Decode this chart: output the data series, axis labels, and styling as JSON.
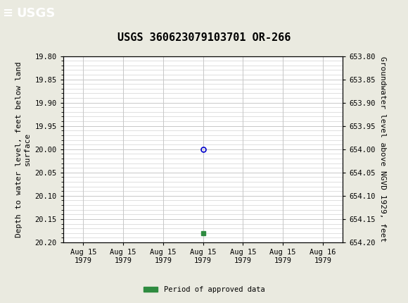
{
  "title": "USGS 360623079103701 OR-266",
  "left_ylabel": "Depth to water level, feet below land\nsurface",
  "right_ylabel": "Groundwater level above NGVD 1929, feet",
  "ylim_left_top": 19.8,
  "ylim_left_bottom": 20.2,
  "ylim_right_top": 654.2,
  "ylim_right_bottom": 653.8,
  "left_yticks": [
    19.8,
    19.85,
    19.9,
    19.95,
    20.0,
    20.05,
    20.1,
    20.15,
    20.2
  ],
  "right_yticks": [
    654.2,
    654.15,
    654.1,
    654.05,
    654.0,
    653.95,
    653.9,
    653.85,
    653.8
  ],
  "data_point_y": 20.0,
  "green_marker_y": 20.18,
  "data_point_x": 3.0,
  "green_marker_x": 3.0,
  "header_color": "#1a6b3c",
  "header_text_color": "#ffffff",
  "fig_bg_color": "#eaeae0",
  "plot_bg_color": "#ffffff",
  "grid_color": "#c8c8c8",
  "point_color": "#0000cc",
  "green_color": "#2e8b40",
  "legend_label": "Period of approved data",
  "font_family": "DejaVu Sans Mono",
  "title_fontsize": 11,
  "tick_fontsize": 7.5,
  "label_fontsize": 8,
  "xtick_labels": [
    "Aug 15\n1979",
    "Aug 15\n1979",
    "Aug 15\n1979",
    "Aug 15\n1979",
    "Aug 15\n1979",
    "Aug 15\n1979",
    "Aug 16\n1979"
  ],
  "xtick_positions": [
    0,
    1,
    2,
    3,
    4,
    5,
    6
  ],
  "xlim": [
    -0.5,
    6.5
  ]
}
